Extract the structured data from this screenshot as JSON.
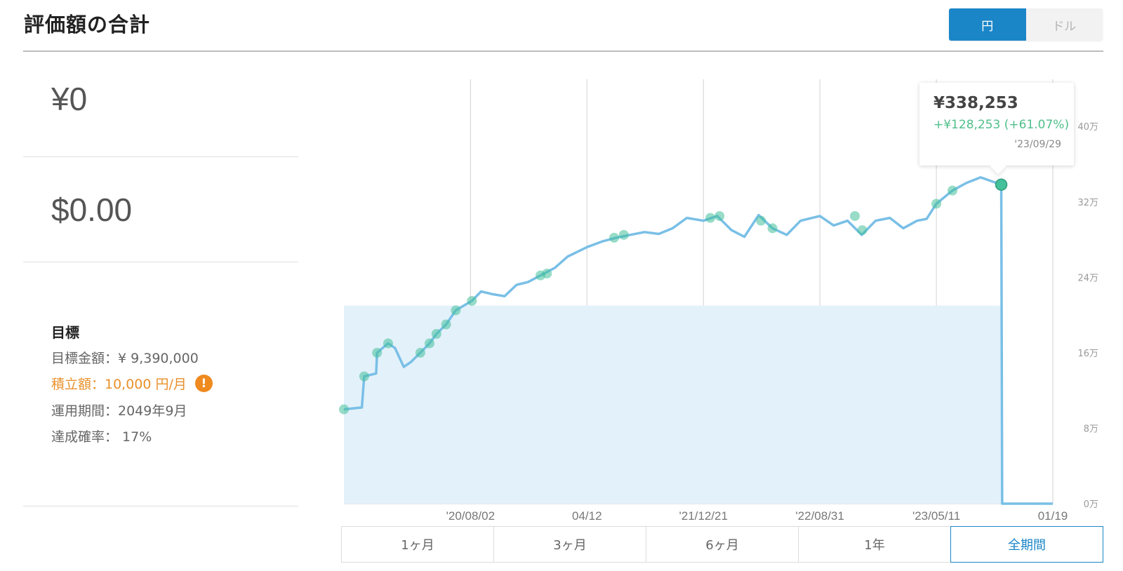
{
  "header": {
    "title": "評価額の合計",
    "currency_options": [
      "円",
      "ドル"
    ],
    "active_currency": "円"
  },
  "summary": {
    "jpy_value": "¥0",
    "usd_value": "$0.00"
  },
  "goal": {
    "heading": "目標",
    "target_amount": "目標金額：¥ 9,390,000",
    "monthly_contribution": "積立額：10,000 円/月",
    "investment_period": "運用期間：2049年9月",
    "achievement_probability": "達成確率： 17%"
  },
  "tooltip": {
    "value": "¥338,253",
    "change": "+¥128,253 (+61.07%)",
    "date": "'23/09/29"
  },
  "period_tabs": [
    "1ヶ月",
    "3ヶ月",
    "6ヶ月",
    "1年",
    "全期間"
  ],
  "active_period": "全期間",
  "colors": {
    "accent": "#1a86c8",
    "line": "#79bfe6",
    "fill": "#e3f1fa",
    "marker": "#44c09a",
    "gain": "#4fbf8a",
    "warning": "#ef8a1f"
  },
  "chart_data": {
    "type": "line",
    "title": "",
    "xlabel": "",
    "ylabel": "",
    "x_tick_labels": [
      "'20/08/02",
      "04/12",
      "'21/12/21",
      "'22/08/31",
      "'23/05/11",
      "01/19"
    ],
    "y_tick_labels": [
      "0万",
      "8万",
      "16万",
      "24万",
      "32万",
      "40万"
    ],
    "ylim": [
      0,
      450000
    ],
    "grid": "vertical",
    "series": [
      {
        "kind": "valuation",
        "values": [
          [
            "2019-11-01",
            100000
          ],
          [
            "2019-12-10",
            102000
          ],
          [
            "2019-12-15",
            135000
          ],
          [
            "2020-01-10",
            138000
          ],
          [
            "2020-01-12",
            160000
          ],
          [
            "2020-02-05",
            170000
          ],
          [
            "2020-02-20",
            165000
          ],
          [
            "2020-03-10",
            145000
          ],
          [
            "2020-03-25",
            150000
          ],
          [
            "2020-04-15",
            160000
          ],
          [
            "2020-05-05",
            170000
          ],
          [
            "2020-05-20",
            180000
          ],
          [
            "2020-06-10",
            190000
          ],
          [
            "2020-07-01",
            205000
          ],
          [
            "2020-08-05",
            215000
          ],
          [
            "2020-08-25",
            225000
          ],
          [
            "2020-09-20",
            222000
          ],
          [
            "2020-10-15",
            220000
          ],
          [
            "2020-11-10",
            232000
          ],
          [
            "2020-12-05",
            235000
          ],
          [
            "2021-01-01",
            242000
          ],
          [
            "2021-02-01",
            250000
          ],
          [
            "2021-03-01",
            262000
          ],
          [
            "2021-04-12",
            272000
          ],
          [
            "2021-05-15",
            278000
          ],
          [
            "2021-06-15",
            282000
          ],
          [
            "2021-07-15",
            285000
          ],
          [
            "2021-08-15",
            288000
          ],
          [
            "2021-09-15",
            286000
          ],
          [
            "2021-10-15",
            292000
          ],
          [
            "2021-11-15",
            303000
          ],
          [
            "2021-12-21",
            300000
          ],
          [
            "2022-01-20",
            305000
          ],
          [
            "2022-02-20",
            290000
          ],
          [
            "2022-03-20",
            283000
          ],
          [
            "2022-04-20",
            306000
          ],
          [
            "2022-05-20",
            292000
          ],
          [
            "2022-06-20",
            285000
          ],
          [
            "2022-07-20",
            300000
          ],
          [
            "2022-08-31",
            305000
          ],
          [
            "2022-09-30",
            295000
          ],
          [
            "2022-10-30",
            300000
          ],
          [
            "2022-11-30",
            285000
          ],
          [
            "2022-12-30",
            300000
          ],
          [
            "2023-01-30",
            303000
          ],
          [
            "2023-02-28",
            292000
          ],
          [
            "2023-03-30",
            300000
          ],
          [
            "2023-04-20",
            302000
          ],
          [
            "2023-05-11",
            318000
          ],
          [
            "2023-06-15",
            332000
          ],
          [
            "2023-07-15",
            340000
          ],
          [
            "2023-08-15",
            346000
          ],
          [
            "2023-09-29",
            338253
          ],
          [
            "2023-10-01",
            0
          ],
          [
            "2024-01-19",
            0
          ]
        ]
      },
      {
        "kind": "principal",
        "values": [
          [
            "2019-11-01",
            210000
          ],
          [
            "2023-09-29",
            210000
          ],
          [
            "2023-10-01",
            0
          ],
          [
            "2024-01-19",
            0
          ]
        ]
      }
    ],
    "markers": [
      [
        "2019-11-01",
        100000
      ],
      [
        "2019-12-15",
        135000
      ],
      [
        "2020-01-12",
        160000
      ],
      [
        "2020-02-05",
        170000
      ],
      [
        "2020-04-15",
        160000
      ],
      [
        "2020-05-05",
        170000
      ],
      [
        "2020-05-20",
        180000
      ],
      [
        "2020-06-10",
        190000
      ],
      [
        "2020-07-01",
        205000
      ],
      [
        "2020-08-05",
        215000
      ],
      [
        "2021-01-01",
        242000
      ],
      [
        "2021-01-15",
        244000
      ],
      [
        "2021-06-10",
        282000
      ],
      [
        "2021-07-01",
        285000
      ],
      [
        "2022-01-05",
        303000
      ],
      [
        "2022-01-25",
        305000
      ],
      [
        "2022-04-25",
        300000
      ],
      [
        "2022-05-20",
        292000
      ],
      [
        "2022-11-15",
        305000
      ],
      [
        "2022-12-01",
        290000
      ],
      [
        "2023-05-11",
        318000
      ],
      [
        "2023-06-15",
        332000
      ],
      [
        "2023-09-29",
        338253
      ]
    ],
    "tooltip_point": [
      "2023-09-29",
      338253
    ]
  }
}
